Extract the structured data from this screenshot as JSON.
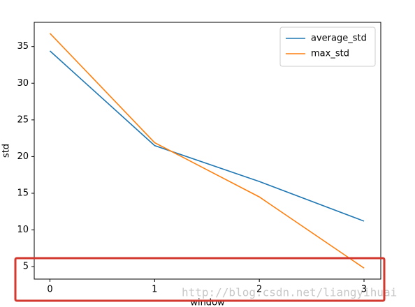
{
  "chart_data": {
    "type": "line",
    "xlabel": "window",
    "ylabel": "std",
    "x": [
      0,
      1,
      2,
      3
    ],
    "series": [
      {
        "name": "average_std",
        "color": "#1f77b4",
        "values": [
          34.4,
          21.5,
          16.6,
          11.2
        ]
      },
      {
        "name": "max_std",
        "color": "#ff7f0e",
        "values": [
          36.8,
          21.9,
          14.5,
          4.8
        ]
      }
    ],
    "xlim": [
      -0.15,
      3.16
    ],
    "ylim": [
      3.3,
      38.3
    ],
    "xticks": [
      0,
      1,
      2,
      3
    ],
    "yticks": [
      5,
      10,
      15,
      20,
      25,
      30,
      35
    ],
    "legend": "upper right",
    "watermark": "http://blog.csdn.net/liangyihuai"
  }
}
